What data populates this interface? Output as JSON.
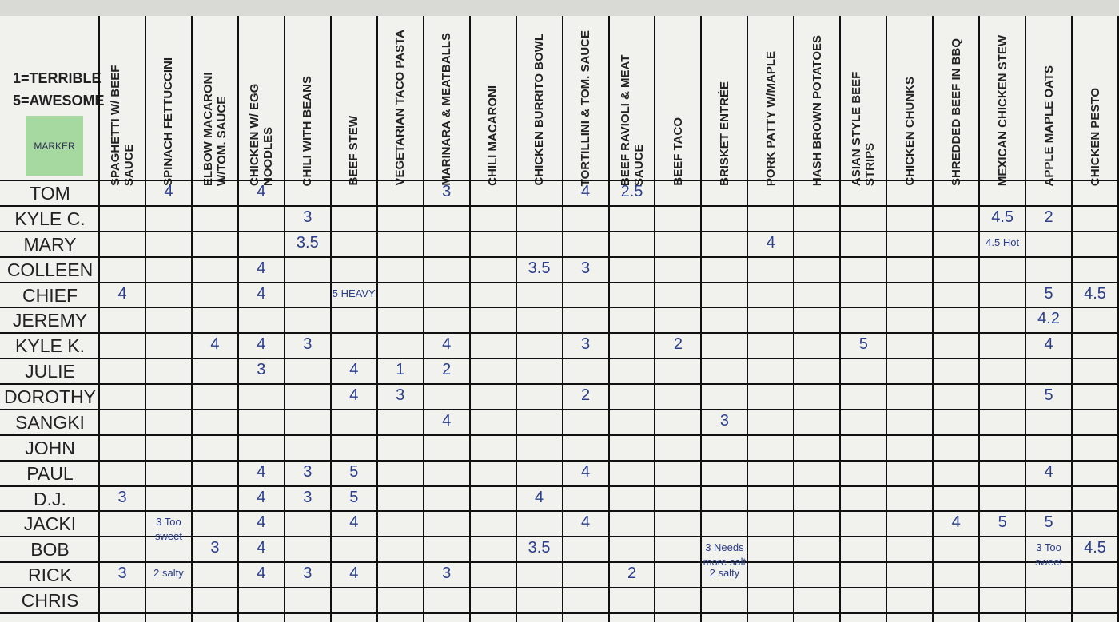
{
  "legend": {
    "lines": [
      "1=TERRIBLE",
      "5=AWESOME"
    ],
    "marker": "MARKER"
  },
  "table": {
    "columns": [
      "SPAGHETTI W/ BEEF SAUCE",
      "SPINACH FETTUCCINI",
      "ELBOW MACARONI W/TOM. SAUCE",
      "CHICKEN W/ EGG NOODLES",
      "CHILI WITH BEANS",
      "BEEF STEW",
      "VEGETARIAN TACO PASTA",
      "MARINARA & MEATBALLS",
      "CHILI MACARONI",
      "CHICKEN BURRITO BOWL",
      "TORTILLINI & TOM. SAUCE",
      "BEEF RAVIOLI & MEAT SAUCE",
      "BEEF TACO",
      "BRISKET ENTRÉE",
      "PORK PATTY W/MAPLE",
      "HASH BROWN POTATOES",
      "ASIAN STYLE BEEF STRIPS",
      "CHICKEN CHUNKS",
      "SHREDDED BEEF IN BBQ",
      "MEXICAN CHICKEN STEW",
      "APPLE MAPLE OATS",
      "CHICKEN PESTO"
    ],
    "rows": [
      {
        "name": "TOM",
        "cells": [
          null,
          4,
          null,
          4,
          null,
          null,
          null,
          3,
          null,
          null,
          4,
          2.5,
          null,
          null,
          null,
          null,
          null,
          null,
          null,
          null,
          null,
          null
        ]
      },
      {
        "name": "KYLE C.",
        "cells": [
          null,
          null,
          null,
          null,
          3,
          null,
          null,
          null,
          null,
          null,
          null,
          null,
          null,
          null,
          null,
          null,
          null,
          null,
          null,
          4.5,
          2,
          null
        ]
      },
      {
        "name": "MARY",
        "cells": [
          null,
          null,
          null,
          null,
          3.5,
          null,
          null,
          null,
          null,
          null,
          null,
          null,
          null,
          null,
          4,
          null,
          null,
          null,
          null,
          "4.5 Hot",
          null,
          null
        ]
      },
      {
        "name": "COLLEEN",
        "cells": [
          null,
          null,
          null,
          4,
          null,
          null,
          null,
          null,
          null,
          3.5,
          3,
          null,
          null,
          null,
          null,
          null,
          null,
          null,
          null,
          null,
          null,
          null
        ]
      },
      {
        "name": "CHIEF",
        "cells": [
          4,
          null,
          null,
          4,
          null,
          "5 HEAVY",
          null,
          null,
          null,
          null,
          null,
          null,
          null,
          null,
          null,
          null,
          null,
          null,
          null,
          null,
          5,
          4.5
        ]
      },
      {
        "name": "JEREMY",
        "cells": [
          null,
          null,
          null,
          null,
          null,
          null,
          null,
          null,
          null,
          null,
          null,
          null,
          null,
          null,
          null,
          null,
          null,
          null,
          null,
          null,
          4.2,
          null
        ]
      },
      {
        "name": "KYLE K.",
        "cells": [
          null,
          null,
          4,
          4,
          3,
          null,
          null,
          4,
          null,
          null,
          3,
          null,
          2,
          null,
          null,
          null,
          5,
          null,
          null,
          null,
          4,
          null
        ]
      },
      {
        "name": "JULIE",
        "cells": [
          null,
          null,
          null,
          3,
          null,
          4,
          1,
          2,
          null,
          null,
          null,
          null,
          null,
          null,
          null,
          null,
          null,
          null,
          null,
          null,
          null,
          null
        ]
      },
      {
        "name": "DOROTHY",
        "cells": [
          null,
          null,
          null,
          null,
          null,
          4,
          3,
          null,
          null,
          null,
          2,
          null,
          null,
          null,
          null,
          null,
          null,
          null,
          null,
          null,
          5,
          null
        ]
      },
      {
        "name": "SANGKI",
        "cells": [
          null,
          null,
          null,
          null,
          null,
          null,
          null,
          4,
          null,
          null,
          null,
          null,
          null,
          3,
          null,
          null,
          null,
          null,
          null,
          null,
          null,
          null
        ]
      },
      {
        "name": "JOHN",
        "cells": [
          null,
          null,
          null,
          null,
          null,
          null,
          null,
          null,
          null,
          null,
          null,
          null,
          null,
          null,
          null,
          null,
          null,
          null,
          null,
          null,
          null,
          null
        ]
      },
      {
        "name": "PAUL",
        "cells": [
          null,
          null,
          null,
          4,
          3,
          5,
          null,
          null,
          null,
          null,
          4,
          null,
          null,
          null,
          null,
          null,
          null,
          null,
          null,
          null,
          4,
          null
        ]
      },
      {
        "name": "D.J.",
        "cells": [
          3,
          null,
          null,
          4,
          3,
          5,
          null,
          null,
          null,
          4,
          null,
          null,
          null,
          null,
          null,
          null,
          null,
          null,
          null,
          null,
          null,
          null
        ]
      },
      {
        "name": "JACKI",
        "cells": [
          null,
          "3 Too sweet",
          null,
          4,
          null,
          4,
          null,
          null,
          null,
          null,
          4,
          null,
          null,
          null,
          null,
          null,
          null,
          null,
          4,
          5,
          5,
          null
        ]
      },
      {
        "name": "BOB",
        "cells": [
          null,
          null,
          3,
          4,
          null,
          null,
          null,
          null,
          null,
          3.5,
          null,
          null,
          null,
          "3 Needs more salt",
          null,
          null,
          null,
          null,
          null,
          null,
          "3 Too sweet",
          4.5
        ]
      },
      {
        "name": "RICK",
        "cells": [
          3,
          "2 salty",
          null,
          4,
          3,
          4,
          null,
          3,
          null,
          null,
          null,
          2,
          null,
          "2 salty",
          null,
          null,
          null,
          null,
          null,
          null,
          null,
          null
        ]
      },
      {
        "name": "CHRIS",
        "cells": [
          null,
          null,
          null,
          null,
          null,
          null,
          null,
          null,
          null,
          null,
          null,
          null,
          null,
          null,
          null,
          null,
          null,
          null,
          null,
          null,
          null,
          null
        ]
      }
    ]
  }
}
